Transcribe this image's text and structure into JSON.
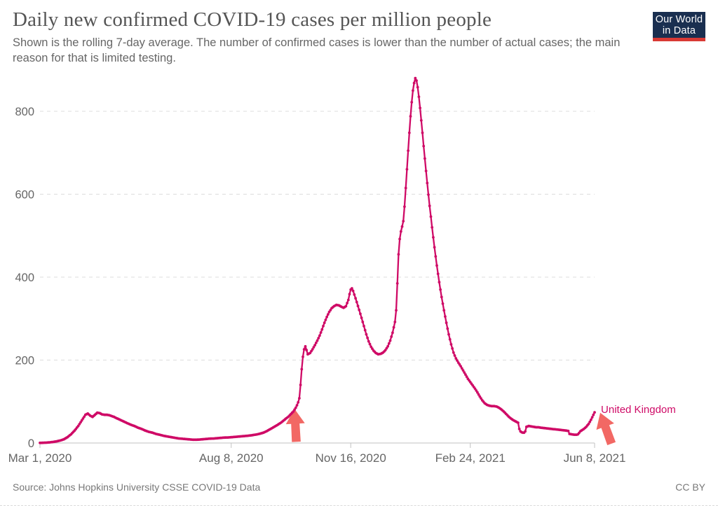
{
  "header": {
    "title": "Daily new confirmed COVID-19 cases per million people",
    "subtitle": "Shown is the rolling 7-day average. The number of confirmed cases is lower than the number of actual cases; the main reason for that is limited testing.",
    "logo": {
      "line1": "Our World",
      "line2": "in Data",
      "bg_color": "#1a2f50",
      "accent_color": "#d93a35"
    }
  },
  "footer": {
    "source": "Source: Johns Hopkins University CSSE COVID-19 Data",
    "license": "CC BY"
  },
  "chart_data": {
    "type": "line",
    "title": "Daily new confirmed COVID-19 cases per million people",
    "x_unit": "days since 2020-03-01",
    "x_axis": {
      "start_label": "Mar 1, 2020",
      "end_label": "Jun 8, 2021",
      "ticks": [
        {
          "day": 0,
          "label": "Mar 1, 2020"
        },
        {
          "day": 160,
          "label": "Aug 8, 2020"
        },
        {
          "day": 260,
          "label": "Nov 16, 2020"
        },
        {
          "day": 360,
          "label": "Feb 24, 2021"
        },
        {
          "day": 464,
          "label": "Jun 8, 2021"
        }
      ]
    },
    "y_axis": {
      "min": 0,
      "max": 880,
      "ticks": [
        0,
        200,
        400,
        600,
        800
      ]
    },
    "grid": "horizontal-dashed",
    "legend_position": "inline-end-label",
    "series": [
      {
        "name": "United Kingdom",
        "color": "#cf0a66",
        "points": [
          [
            0,
            0.3
          ],
          [
            6,
            1
          ],
          [
            11,
            2.5
          ],
          [
            14,
            4
          ],
          [
            17,
            6
          ],
          [
            20,
            9
          ],
          [
            23,
            14
          ],
          [
            26,
            21
          ],
          [
            29,
            30
          ],
          [
            32,
            41
          ],
          [
            34,
            50
          ],
          [
            36,
            59
          ],
          [
            38,
            68
          ],
          [
            40,
            71
          ],
          [
            42,
            66
          ],
          [
            44,
            63
          ],
          [
            46,
            68
          ],
          [
            48,
            73
          ],
          [
            50,
            72
          ],
          [
            52,
            69
          ],
          [
            54,
            68
          ],
          [
            56,
            68
          ],
          [
            58,
            67
          ],
          [
            60,
            65
          ],
          [
            62,
            63
          ],
          [
            64,
            60
          ],
          [
            67,
            56
          ],
          [
            70,
            52
          ],
          [
            73,
            48
          ],
          [
            76,
            44
          ],
          [
            79,
            41
          ],
          [
            82,
            37
          ],
          [
            85,
            34
          ],
          [
            88,
            30
          ],
          [
            91,
            27
          ],
          [
            94,
            25
          ],
          [
            97,
            22
          ],
          [
            100,
            20
          ],
          [
            104,
            17
          ],
          [
            108,
            15
          ],
          [
            112,
            13
          ],
          [
            116,
            11
          ],
          [
            120,
            10
          ],
          [
            124,
            9
          ],
          [
            128,
            8
          ],
          [
            131,
            8
          ],
          [
            134,
            8.5
          ],
          [
            138,
            9.5
          ],
          [
            142,
            10.5
          ],
          [
            146,
            11
          ],
          [
            150,
            12
          ],
          [
            154,
            13
          ],
          [
            158,
            13.5
          ],
          [
            162,
            14.5
          ],
          [
            166,
            15.5
          ],
          [
            170,
            16.5
          ],
          [
            174,
            17.5
          ],
          [
            178,
            19
          ],
          [
            181,
            20.5
          ],
          [
            184,
            22.5
          ],
          [
            187,
            25
          ],
          [
            190,
            29
          ],
          [
            193,
            34
          ],
          [
            196,
            39
          ],
          [
            199,
            44
          ],
          [
            202,
            50
          ],
          [
            205,
            57
          ],
          [
            208,
            64
          ],
          [
            210,
            70
          ],
          [
            212,
            76
          ],
          [
            214,
            85
          ],
          [
            215,
            91
          ],
          [
            216,
            98
          ],
          [
            217,
            108
          ],
          [
            218,
            140
          ],
          [
            219,
            178
          ],
          [
            220,
            208
          ],
          [
            221,
            226
          ],
          [
            222,
            233
          ],
          [
            223,
            224
          ],
          [
            224,
            214
          ],
          [
            226,
            217
          ],
          [
            228,
            226
          ],
          [
            230,
            236
          ],
          [
            232,
            247
          ],
          [
            234,
            259
          ],
          [
            236,
            274
          ],
          [
            238,
            290
          ],
          [
            240,
            304
          ],
          [
            242,
            316
          ],
          [
            244,
            325
          ],
          [
            246,
            330
          ],
          [
            248,
            333
          ],
          [
            250,
            332
          ],
          [
            252,
            329
          ],
          [
            254,
            326
          ],
          [
            256,
            330
          ],
          [
            258,
            345
          ],
          [
            259,
            359
          ],
          [
            260,
            370
          ],
          [
            261,
            373
          ],
          [
            262,
            367
          ],
          [
            263,
            358
          ],
          [
            265,
            340
          ],
          [
            267,
            321
          ],
          [
            269,
            302
          ],
          [
            271,
            282
          ],
          [
            273,
            262
          ],
          [
            275,
            245
          ],
          [
            277,
            232
          ],
          [
            279,
            223
          ],
          [
            281,
            217
          ],
          [
            283,
            214
          ],
          [
            285,
            215
          ],
          [
            287,
            218
          ],
          [
            289,
            224
          ],
          [
            291,
            233
          ],
          [
            293,
            247
          ],
          [
            295,
            266
          ],
          [
            297,
            292
          ],
          [
            298,
            320
          ],
          [
            299,
            385
          ],
          [
            300,
            455
          ],
          [
            301,
            492
          ],
          [
            302,
            510
          ],
          [
            303,
            522
          ],
          [
            304,
            535
          ],
          [
            305,
            570
          ],
          [
            306,
            615
          ],
          [
            307,
            660
          ],
          [
            308,
            705
          ],
          [
            309,
            748
          ],
          [
            310,
            788
          ],
          [
            311,
            822
          ],
          [
            312,
            850
          ],
          [
            313,
            868
          ],
          [
            314,
            880
          ],
          [
            315,
            874
          ],
          [
            316,
            858
          ],
          [
            317,
            835
          ],
          [
            318,
            808
          ],
          [
            319,
            778
          ],
          [
            320,
            748
          ],
          [
            321,
            716
          ],
          [
            322,
            686
          ],
          [
            323,
            656
          ],
          [
            324,
            627
          ],
          [
            325,
            599
          ],
          [
            326,
            572
          ],
          [
            327,
            546
          ],
          [
            328,
            520
          ],
          [
            329,
            496
          ],
          [
            330,
            472
          ],
          [
            331,
            450
          ],
          [
            332,
            428
          ],
          [
            333,
            408
          ],
          [
            334,
            388
          ],
          [
            336,
            352
          ],
          [
            338,
            320
          ],
          [
            340,
            290
          ],
          [
            342,
            262
          ],
          [
            344,
            238
          ],
          [
            346,
            218
          ],
          [
            348,
            204
          ],
          [
            350,
            194
          ],
          [
            352,
            185
          ],
          [
            354,
            175
          ],
          [
            356,
            165
          ],
          [
            358,
            155
          ],
          [
            360,
            147
          ],
          [
            362,
            139
          ],
          [
            364,
            131
          ],
          [
            366,
            122
          ],
          [
            368,
            112
          ],
          [
            370,
            103
          ],
          [
            372,
            96
          ],
          [
            374,
            92
          ],
          [
            376,
            90
          ],
          [
            378,
            89
          ],
          [
            380,
            89
          ],
          [
            382,
            88
          ],
          [
            384,
            85
          ],
          [
            386,
            81
          ],
          [
            388,
            76
          ],
          [
            390,
            70
          ],
          [
            392,
            64
          ],
          [
            394,
            59
          ],
          [
            396,
            55
          ],
          [
            398,
            52
          ],
          [
            400,
            49
          ],
          [
            401,
            34
          ],
          [
            402,
            28
          ],
          [
            403,
            26
          ],
          [
            404,
            25
          ],
          [
            405,
            25
          ],
          [
            406,
            28
          ],
          [
            407,
            39
          ],
          [
            409,
            41
          ],
          [
            411,
            40
          ],
          [
            413,
            39
          ],
          [
            415,
            38
          ],
          [
            417,
            38
          ],
          [
            419,
            37
          ],
          [
            422,
            36
          ],
          [
            425,
            35
          ],
          [
            428,
            34
          ],
          [
            431,
            33
          ],
          [
            434,
            32
          ],
          [
            437,
            31
          ],
          [
            440,
            30
          ],
          [
            442,
            29
          ],
          [
            443,
            22
          ],
          [
            445,
            21
          ],
          [
            447,
            20
          ],
          [
            449,
            20
          ],
          [
            450,
            21
          ],
          [
            451,
            24
          ],
          [
            452,
            28
          ],
          [
            453,
            30
          ],
          [
            455,
            34
          ],
          [
            457,
            39
          ],
          [
            459,
            46
          ],
          [
            460,
            51
          ],
          [
            461,
            56
          ],
          [
            462,
            62
          ],
          [
            463,
            68
          ],
          [
            464,
            74
          ]
        ]
      }
    ],
    "annotations": {
      "series_label": {
        "text": "United Kingdom",
        "day": 469.3,
        "value": 81,
        "color": "#cf0a66"
      },
      "arrows": [
        {
          "day": 213,
          "value": 82,
          "rotate": -3,
          "color": "#f04d49",
          "opacity": 0.85
        },
        {
          "day": 468.7,
          "value": 73,
          "rotate": -20,
          "color": "#f04d49",
          "opacity": 0.85
        }
      ]
    },
    "style": {
      "line_color": "#cf0a66",
      "grid_color": "#dcdcdc",
      "axis_color": "#c2c2c2",
      "tick_label_color": "#666666"
    }
  }
}
